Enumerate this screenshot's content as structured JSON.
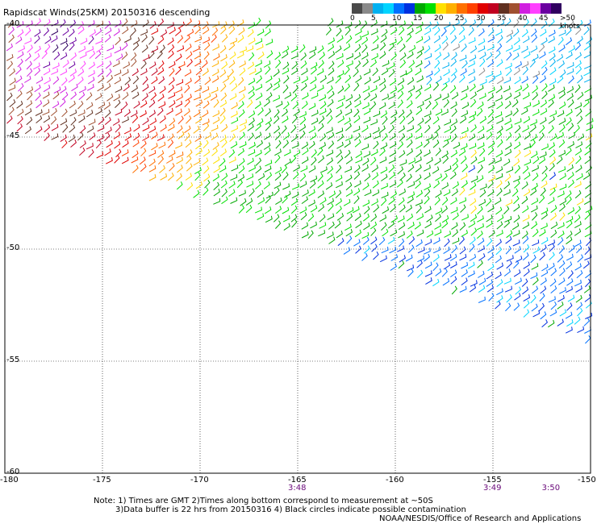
{
  "title": "Rapidscat Winds(25KM) 20150316 descending",
  "legend": {
    "colors": [
      "#4a4a4a",
      "#8a8a8a",
      "#00b0f0",
      "#00d4ff",
      "#0070ff",
      "#0030e0",
      "#00a800",
      "#00e000",
      "#ffe000",
      "#ffb000",
      "#ff7000",
      "#ff4000",
      "#e00000",
      "#c00020",
      "#603020",
      "#a05030",
      "#d020e0",
      "#ff40ff",
      "#6a00a0",
      "#300060"
    ],
    "labels": [
      "0",
      "5",
      "10",
      "15",
      "20",
      "25",
      "30",
      "35",
      "40",
      "45",
      ">50 knots"
    ]
  },
  "axes": {
    "x_ticks": [
      "-180",
      "-175",
      "-170",
      "-165",
      "-160",
      "-155",
      "-150"
    ],
    "y_ticks": [
      "-40",
      "-45",
      "-50",
      "-55",
      "-60"
    ]
  },
  "times": [
    {
      "lon": -165,
      "label": "3:48"
    },
    {
      "lon": -155,
      "label": "3:49"
    },
    {
      "lon": -152,
      "label": "3:50"
    }
  ],
  "notes": {
    "line1": "Note: 1) Times are GMT 2)Times along bottom correspond to measurement at ~50S",
    "line2": "3)Data buffer is 22 hrs from 20150316 4) Black circles indicate possible contamination",
    "credit": "NOAA/NESDIS/Office of Research and Applications"
  }
}
